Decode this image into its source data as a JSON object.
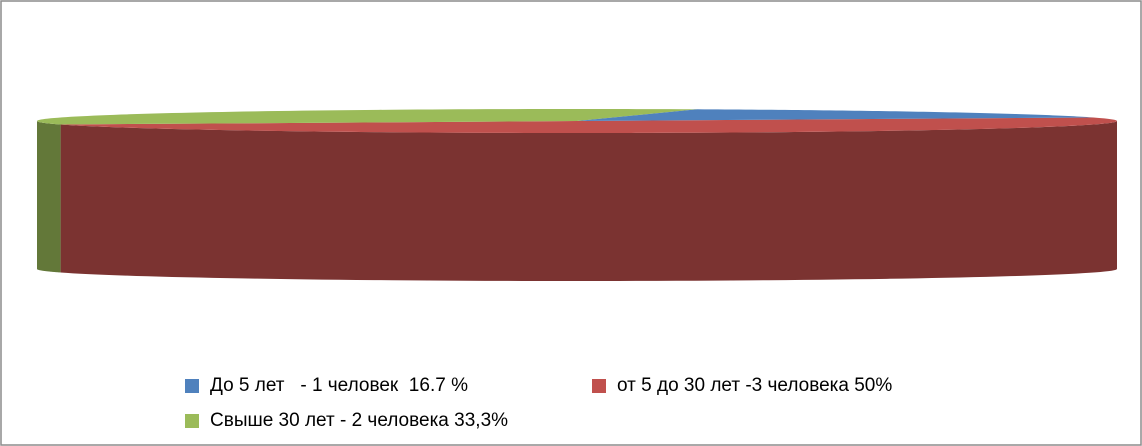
{
  "chart_data": {
    "type": "pie3d",
    "categories": [
      "До 5 лет   - 1 человек  16.7 %",
      "от 5 до 30 лет -3 человека 50%",
      "Свыше 30 лет - 2 человека 33,3%"
    ],
    "values": [
      16.7,
      50,
      33.3
    ],
    "colors": [
      "#4f81bd",
      "#c0504d",
      "#9bbb59"
    ],
    "legend": "bottom"
  }
}
